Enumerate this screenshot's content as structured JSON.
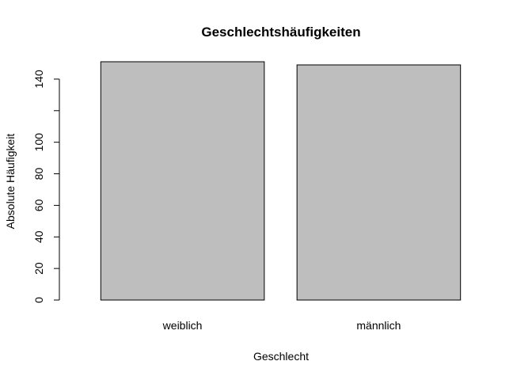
{
  "chart_data": {
    "type": "bar",
    "title": "Geschlechtshäufigkeiten",
    "xlabel": "Geschlecht",
    "ylabel": "Absolute Häufigkeit",
    "categories": [
      "weiblich",
      "männlich"
    ],
    "values": [
      151,
      149
    ],
    "ylim": [
      0,
      151
    ],
    "y_ticks": [
      0,
      20,
      40,
      60,
      80,
      100,
      120,
      140
    ],
    "y_tick_labels": [
      "0",
      "20",
      "40",
      "60",
      "80",
      "100",
      "",
      "140"
    ],
    "bar_fill": "#bebebe",
    "bar_stroke": "#000000",
    "grid": false,
    "legend": "none"
  }
}
